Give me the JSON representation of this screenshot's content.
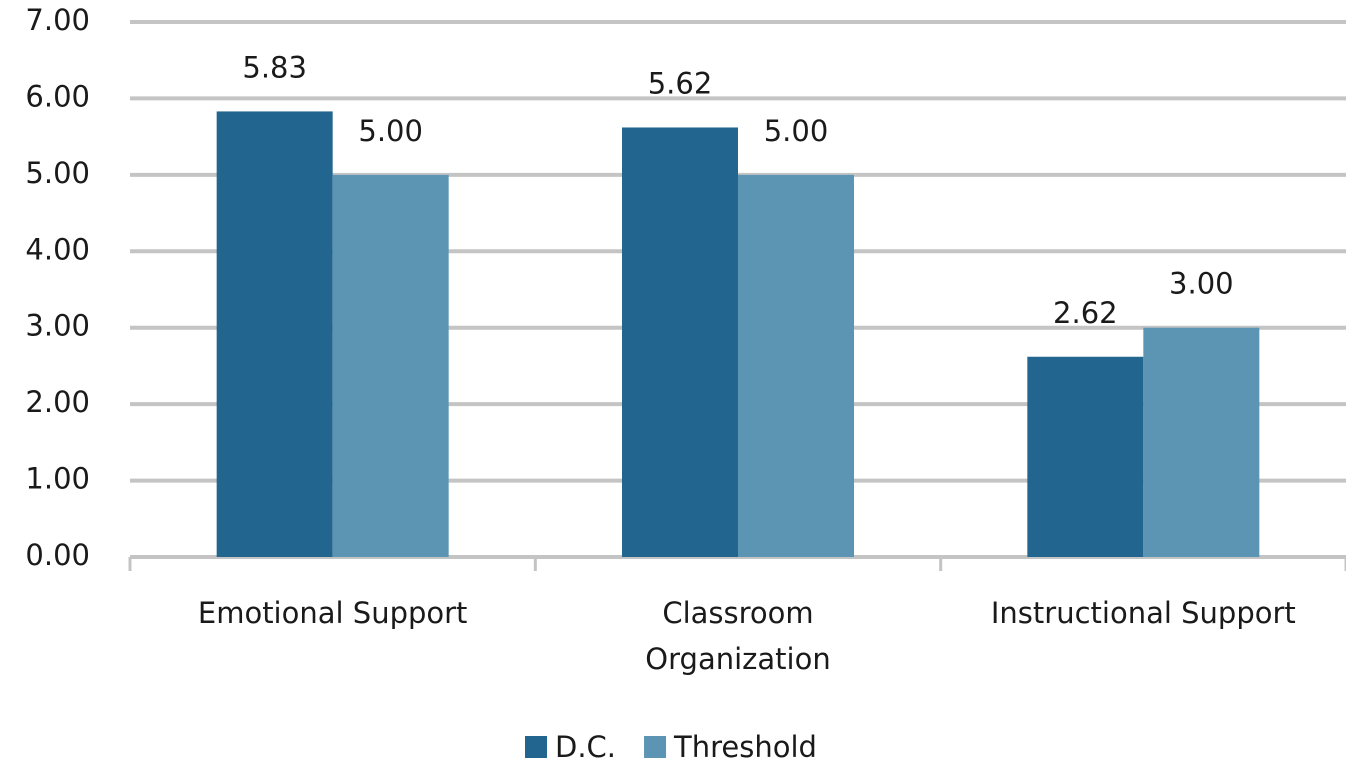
{
  "chart_data": {
    "type": "bar",
    "categories": [
      "Emotional Support",
      "Classroom Organization",
      "Instructional Support"
    ],
    "series": [
      {
        "name": "D.C.",
        "color": "#22668f",
        "values": [
          5.83,
          5.62,
          2.62
        ],
        "value_labels": [
          "5.83",
          "5.62",
          "2.62"
        ]
      },
      {
        "name": "Threshold",
        "color": "#5b95b3",
        "values": [
          5,
          5,
          3
        ],
        "value_labels": [
          "5.00",
          "5.00",
          "3.00"
        ]
      }
    ],
    "ylim": [
      0,
      7
    ],
    "yticks": [
      {
        "value": 0,
        "label": "0.00"
      },
      {
        "value": 1,
        "label": "1.00"
      },
      {
        "value": 2,
        "label": "2.00"
      },
      {
        "value": 3,
        "label": "3.00"
      },
      {
        "value": 4,
        "label": "4.00"
      },
      {
        "value": 5,
        "label": "5.00"
      },
      {
        "value": 6,
        "label": "6.00"
      },
      {
        "value": 7,
        "label": "7.00"
      }
    ],
    "grid": true,
    "legend": "bottom"
  }
}
